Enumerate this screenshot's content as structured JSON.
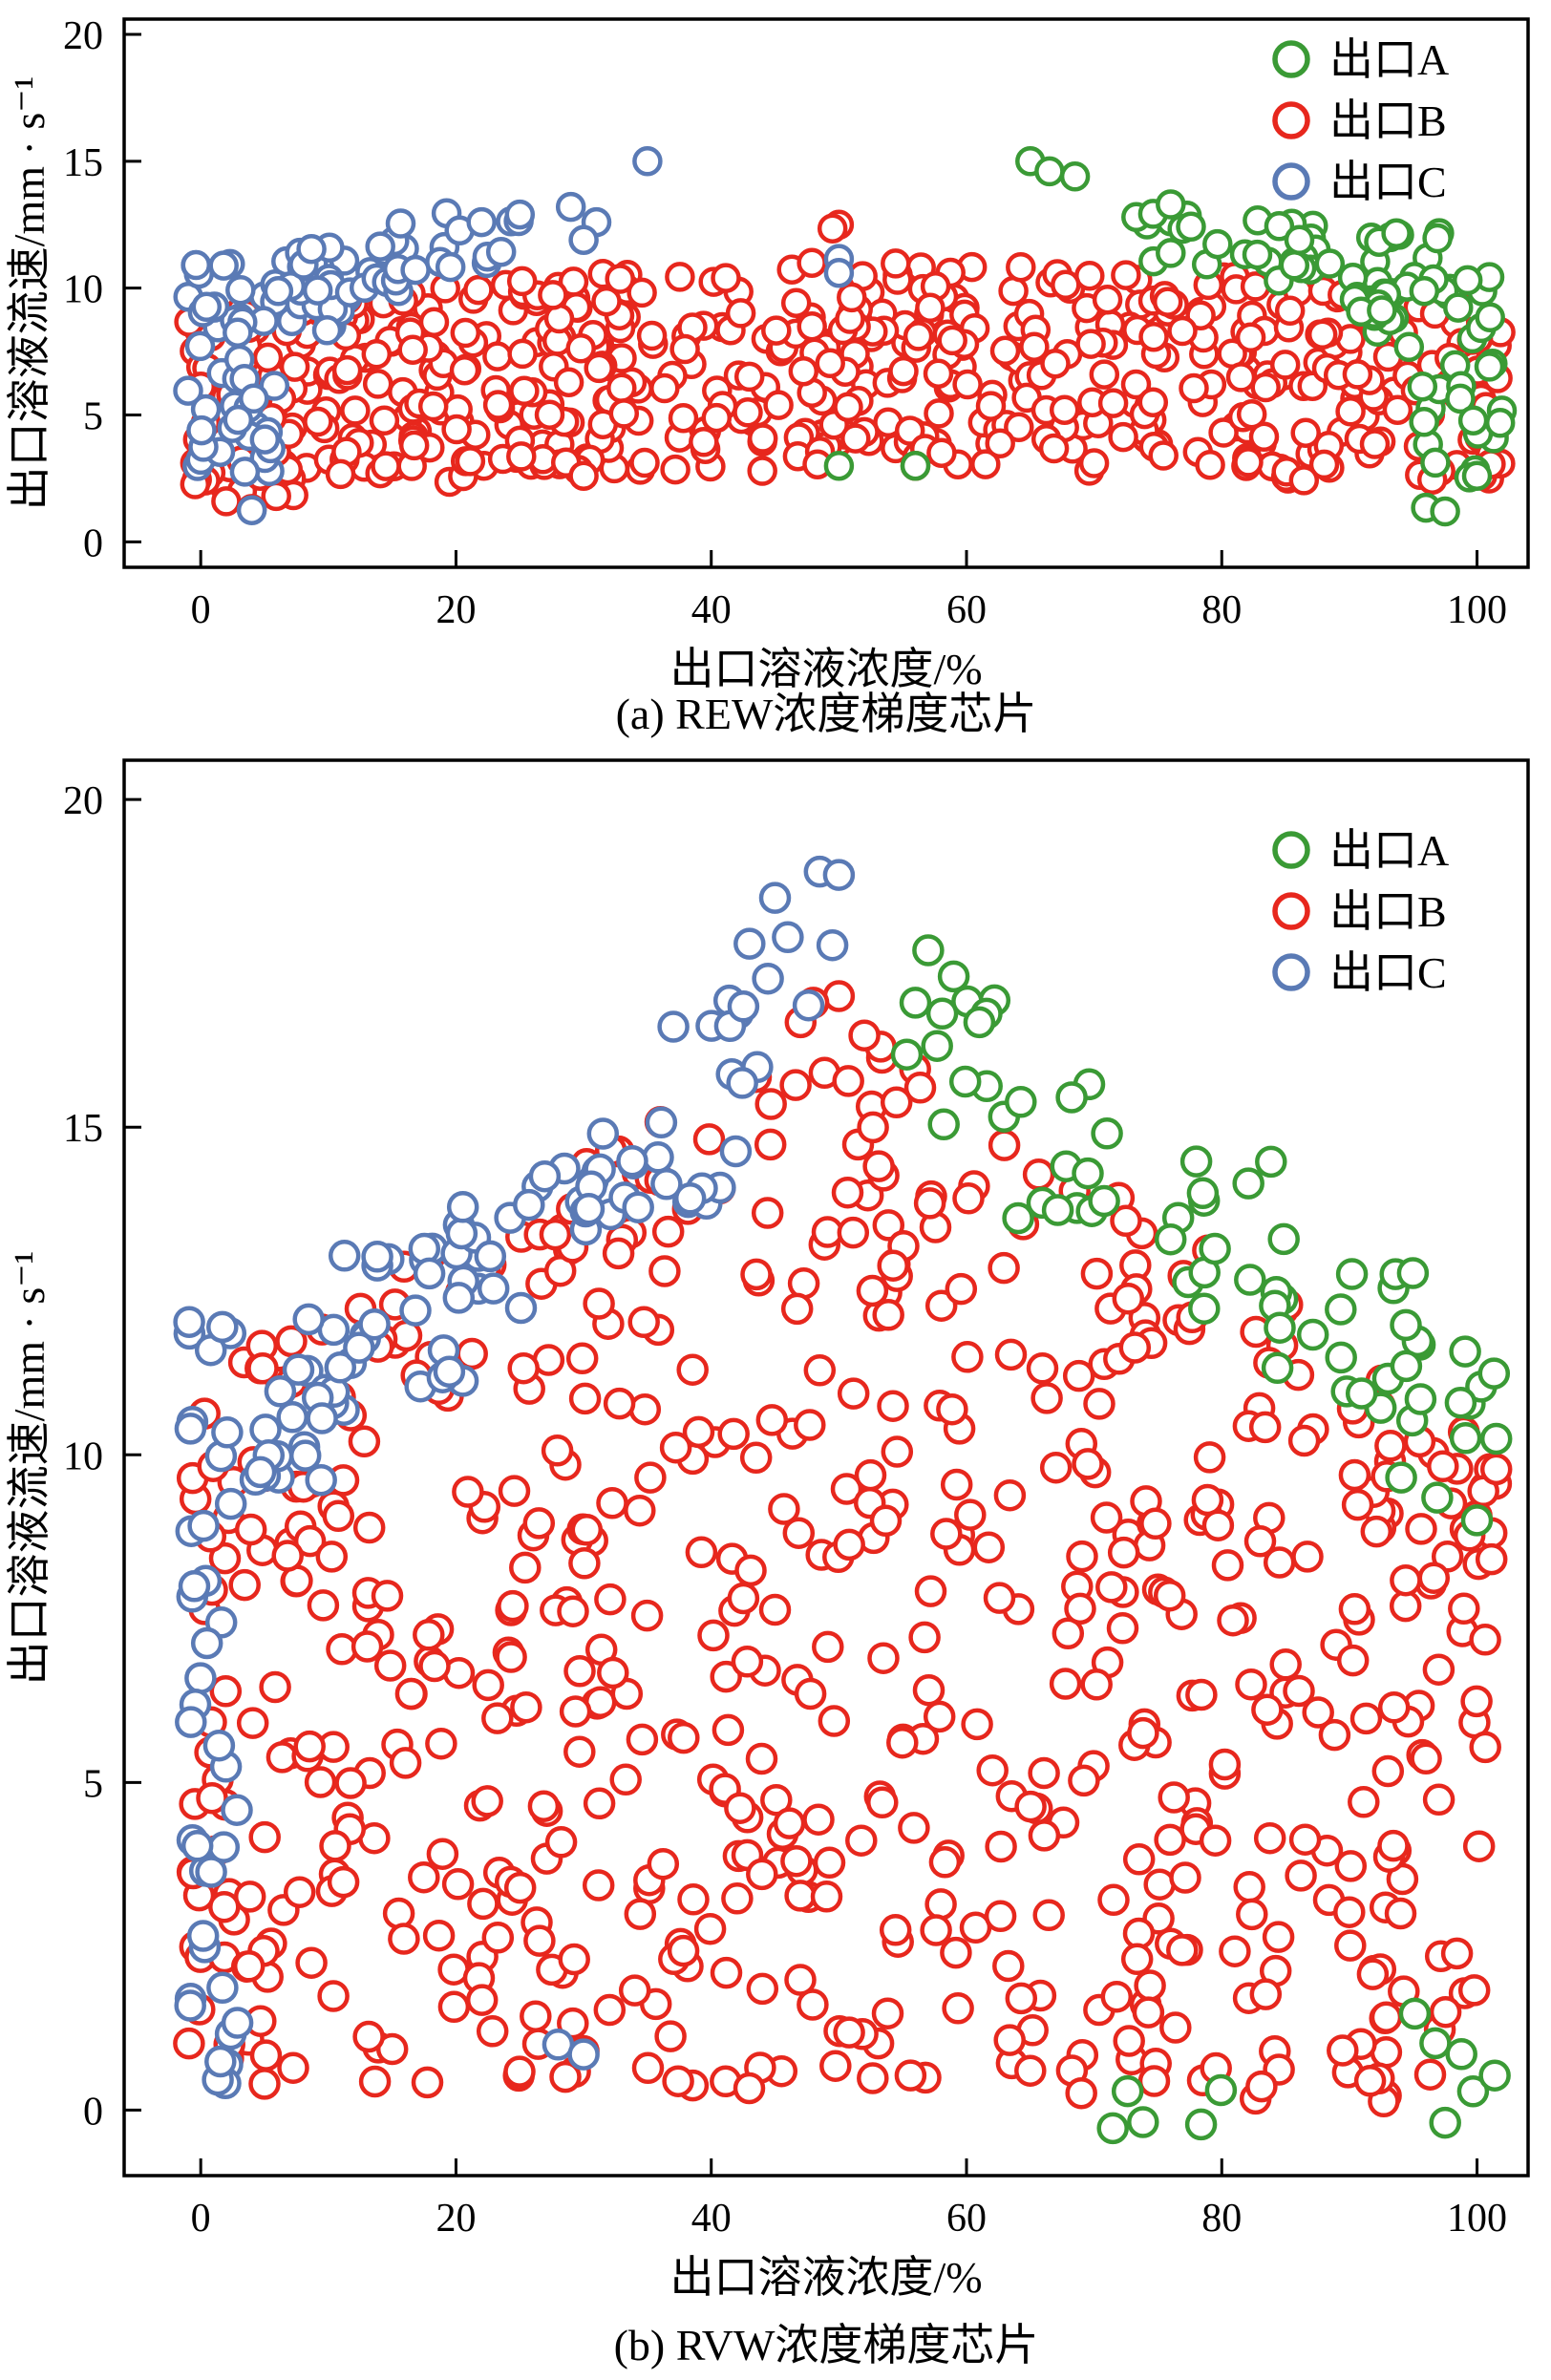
{
  "chart_data": [
    {
      "id": "a",
      "type": "scatter",
      "caption": "(a) REW浓度梯度芯片",
      "xlabel": "出口溶液浓度/%",
      "ylabel": "出口溶液流速/mm · s⁻¹",
      "xlim": [
        -6,
        104
      ],
      "ylim": [
        -1,
        20.6
      ],
      "xticks": [
        0,
        20,
        40,
        60,
        80,
        100
      ],
      "yticks": [
        0,
        5,
        10,
        15,
        20
      ],
      "grid": false,
      "legend_position": "top-right-inside",
      "marker_radius": 13.5,
      "marker_stroke": 4.5,
      "seed": 11,
      "legend": [
        {
          "label": "出口A",
          "color": "#3a9a35"
        },
        {
          "label": "出口B",
          "color": "#e7271d"
        },
        {
          "label": "出口C",
          "color": "#5a7ab5"
        }
      ],
      "series": [
        {
          "name": "出口B",
          "color": "#e7271d",
          "clusters": [
            {
              "n": 80,
              "x": [
                -1,
                10
              ],
              "y": [
                1.8,
                9.6
              ]
            },
            {
              "n": 90,
              "x": [
                10,
                25
              ],
              "y": [
                2.2,
                10.2
              ]
            },
            {
              "n": 110,
              "x": [
                25,
                45
              ],
              "y": [
                2.8,
                10.8
              ]
            },
            {
              "n": 115,
              "x": [
                45,
                65
              ],
              "y": [
                3.0,
                11.0
              ]
            },
            {
              "n": 100,
              "x": [
                65,
                85
              ],
              "y": [
                2.8,
                10.6
              ]
            },
            {
              "n": 90,
              "x": [
                85,
                102
              ],
              "y": [
                2.4,
                10.0
              ]
            }
          ],
          "points": [
            [
              50,
              12.5
            ],
            [
              49.5,
              12.35
            ],
            [
              2,
              1.6
            ],
            [
              4,
              1.3
            ],
            [
              30,
              2.6
            ],
            [
              44,
              2.8
            ],
            [
              56,
              3.0
            ],
            [
              70,
              3.1
            ]
          ]
        },
        {
          "name": "出口C",
          "color": "#5a7ab5",
          "clusters": [
            {
              "n": 42,
              "x": [
                -1,
                12
              ],
              "y": [
                8.2,
                11.2
              ]
            },
            {
              "n": 26,
              "x": [
                -1,
                6
              ],
              "y": [
                2.6,
                7.8
              ]
            },
            {
              "n": 14,
              "x": [
                6,
                16
              ],
              "y": [
                9.8,
                11.6
              ]
            },
            {
              "n": 16,
              "x": [
                13,
                25
              ],
              "y": [
                10.6,
                13.0
              ]
            }
          ],
          "points": [
            [
              35,
              15.0
            ],
            [
              29,
              13.2
            ],
            [
              31,
              12.6
            ],
            [
              30,
              11.9
            ],
            [
              50,
              11.15
            ],
            [
              50,
              10.6
            ],
            [
              4,
              1.25
            ],
            [
              22,
              12.6
            ],
            [
              25,
              12.9
            ]
          ]
        },
        {
          "name": "出口A",
          "color": "#3a9a35",
          "clusters": [
            {
              "n": 22,
              "x": [
                73,
                88
              ],
              "y": [
                10.8,
                13.0
              ]
            },
            {
              "n": 22,
              "x": [
                84,
                98
              ],
              "y": [
                9.6,
                12.2
              ]
            },
            {
              "n": 26,
              "x": [
                90,
                102
              ],
              "y": [
                7.6,
                10.6
              ]
            },
            {
              "n": 18,
              "x": [
                95,
                102
              ],
              "y": [
                2.4,
                7.6
              ]
            }
          ],
          "points": [
            [
              65,
              15.0
            ],
            [
              66.5,
              14.6
            ],
            [
              68.5,
              14.4
            ],
            [
              76,
              13.3
            ],
            [
              50,
              3.0
            ],
            [
              56,
              3.0
            ],
            [
              96,
              1.35
            ],
            [
              97.5,
              1.2
            ],
            [
              100,
              2.6
            ]
          ]
        }
      ]
    },
    {
      "id": "b",
      "type": "scatter",
      "caption": "(b) RVW浓度梯度芯片",
      "xlabel": "出口溶液浓度/%",
      "ylabel": "出口溶液流速/mm · s⁻¹",
      "xlim": [
        -6,
        104
      ],
      "ylim": [
        -1,
        20.6
      ],
      "xticks": [
        0,
        20,
        40,
        60,
        80,
        100
      ],
      "yticks": [
        0,
        5,
        10,
        15,
        20
      ],
      "grid": false,
      "legend_position": "top-right-inside",
      "marker_radius": 14.5,
      "marker_stroke": 4.5,
      "seed": 23,
      "legend": [
        {
          "label": "出口A",
          "color": "#3a9a35"
        },
        {
          "label": "出口B",
          "color": "#e7271d"
        },
        {
          "label": "出口C",
          "color": "#5a7ab5"
        }
      ],
      "series": [
        {
          "name": "出口B",
          "color": "#e7271d",
          "clusters": [
            {
              "n": 340,
              "x": [
                -1,
                50
              ],
              "y": [
                0.3,
                17.0
              ],
              "line": {
                "m": 0.11,
                "b": 11.2
              }
            },
            {
              "n": 330,
              "x": [
                50,
                102
              ],
              "y": [
                0.1,
                17.0
              ],
              "line": {
                "m": -0.125,
                "b": 23.0
              }
            }
          ],
          "points": [
            [
              50,
              17.0
            ],
            [
              47,
              16.6
            ],
            [
              52,
              16.4
            ],
            [
              30,
              0.9
            ],
            [
              65,
              0.6
            ],
            [
              5,
              0.4
            ],
            [
              48,
              16.9
            ]
          ]
        },
        {
          "name": "出口C",
          "color": "#5a7ab5",
          "clusters": [
            {
              "n": 32,
              "x": [
                -1,
                3.5
              ],
              "y": [
                0.2,
                10.8
              ]
            },
            {
              "n": 30,
              "x": [
                -1,
                12
              ],
              "y": [
                9.6,
                12.2
              ]
            },
            {
              "n": 24,
              "x": [
                10,
                22
              ],
              "y": [
                11.0,
                13.6
              ]
            },
            {
              "n": 20,
              "x": [
                20,
                32
              ],
              "y": [
                12.2,
                15.0
              ]
            },
            {
              "n": 18,
              "x": [
                30,
                42
              ],
              "y": [
                13.6,
                16.6
              ]
            },
            {
              "n": 10,
              "x": [
                40,
                50
              ],
              "y": [
                15.6,
                18.2
              ]
            }
          ],
          "points": [
            [
              45,
              18.5
            ],
            [
              48.5,
              18.9
            ],
            [
              43,
              17.8
            ],
            [
              50,
              18.85
            ],
            [
              46,
              17.9
            ],
            [
              28,
              1.0
            ],
            [
              30,
              0.85
            ]
          ]
        },
        {
          "name": "出口A",
          "color": "#3a9a35",
          "clusters": [
            {
              "n": 10,
              "x": [
                55,
                66
              ],
              "y": [
                15.0,
                17.4
              ]
            },
            {
              "n": 12,
              "x": [
                64,
                76
              ],
              "y": [
                13.6,
                15.8
              ]
            },
            {
              "n": 14,
              "x": [
                74,
                86
              ],
              "y": [
                12.2,
                14.6
              ]
            },
            {
              "n": 16,
              "x": [
                84,
                96
              ],
              "y": [
                10.6,
                13.2
              ]
            },
            {
              "n": 14,
              "x": [
                94,
                102
              ],
              "y": [
                9.2,
                12.0
              ]
            },
            {
              "n": 5,
              "x": [
                70,
                80
              ],
              "y": [
                -0.3,
                0.6
              ]
            },
            {
              "n": 6,
              "x": [
                95,
                102
              ],
              "y": [
                -0.2,
                1.8
              ]
            }
          ],
          "points": [
            [
              57,
              17.7
            ],
            [
              59,
              17.3
            ],
            [
              56,
              16.9
            ],
            [
              61,
              16.6
            ],
            [
              100,
              9.0
            ]
          ]
        }
      ]
    }
  ]
}
